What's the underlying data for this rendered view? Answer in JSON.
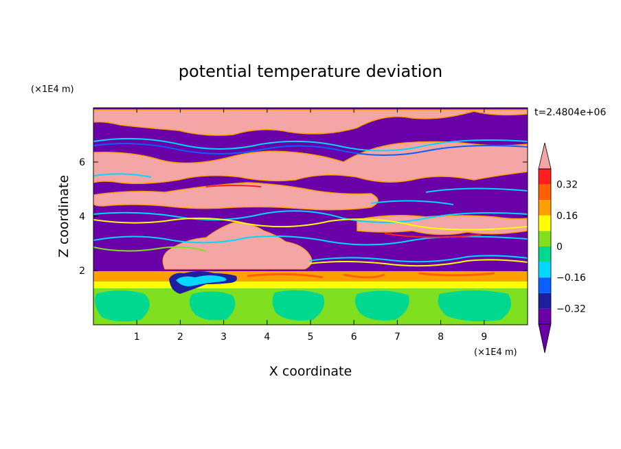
{
  "chart_data": {
    "type": "heatmap",
    "title": "potential temperature deviation",
    "xlabel": "X coordinate",
    "ylabel": "Z coordinate",
    "x_unit": "(×1E4 m)",
    "y_unit": "(×1E4 m)",
    "time_label": "t=2.4804e+06",
    "xlim": [
      0,
      10
    ],
    "ylim": [
      0,
      8
    ],
    "x_ticks": [
      "1",
      "2",
      "3",
      "4",
      "5",
      "6",
      "7",
      "8",
      "9"
    ],
    "y_ticks": [
      "2",
      "4",
      "6"
    ],
    "grid": false,
    "colorbar": {
      "placement": "right",
      "extend": "both",
      "levels": [
        -0.4,
        -0.32,
        -0.24,
        -0.16,
        -0.08,
        0,
        0.08,
        0.16,
        0.24,
        0.32,
        0.4
      ],
      "colors": [
        "#6a00a8",
        "#1f1f9e",
        "#0a5fff",
        "#00d8ff",
        "#00d890",
        "#80e020",
        "#ffff00",
        "#ffa000",
        "#ff6000",
        "#ff1f1f"
      ],
      "under_color": "#6a00a8",
      "over_color": "#f4a6a6",
      "labels": [
        "0.32",
        "0.16",
        "0",
        "−0.16",
        "−0.32"
      ],
      "label_values": [
        0.32,
        0.16,
        0,
        -0.16,
        -0.32
      ]
    },
    "regions": [
      {
        "z_range": [
          0,
          1.5
        ],
        "value_range": [
          -0.08,
          0.16
        ],
        "dominant_value": 0.04
      },
      {
        "z_range": [
          1.5,
          2.1
        ],
        "value_range": [
          0.16,
          0.4
        ],
        "dominant_value": 0.3
      },
      {
        "z_range": [
          2.1,
          8
        ],
        "value_range": [
          -0.5,
          0.5
        ],
        "dominant_value": -0.45,
        "note": "alternating purple and pink layers"
      }
    ]
  }
}
